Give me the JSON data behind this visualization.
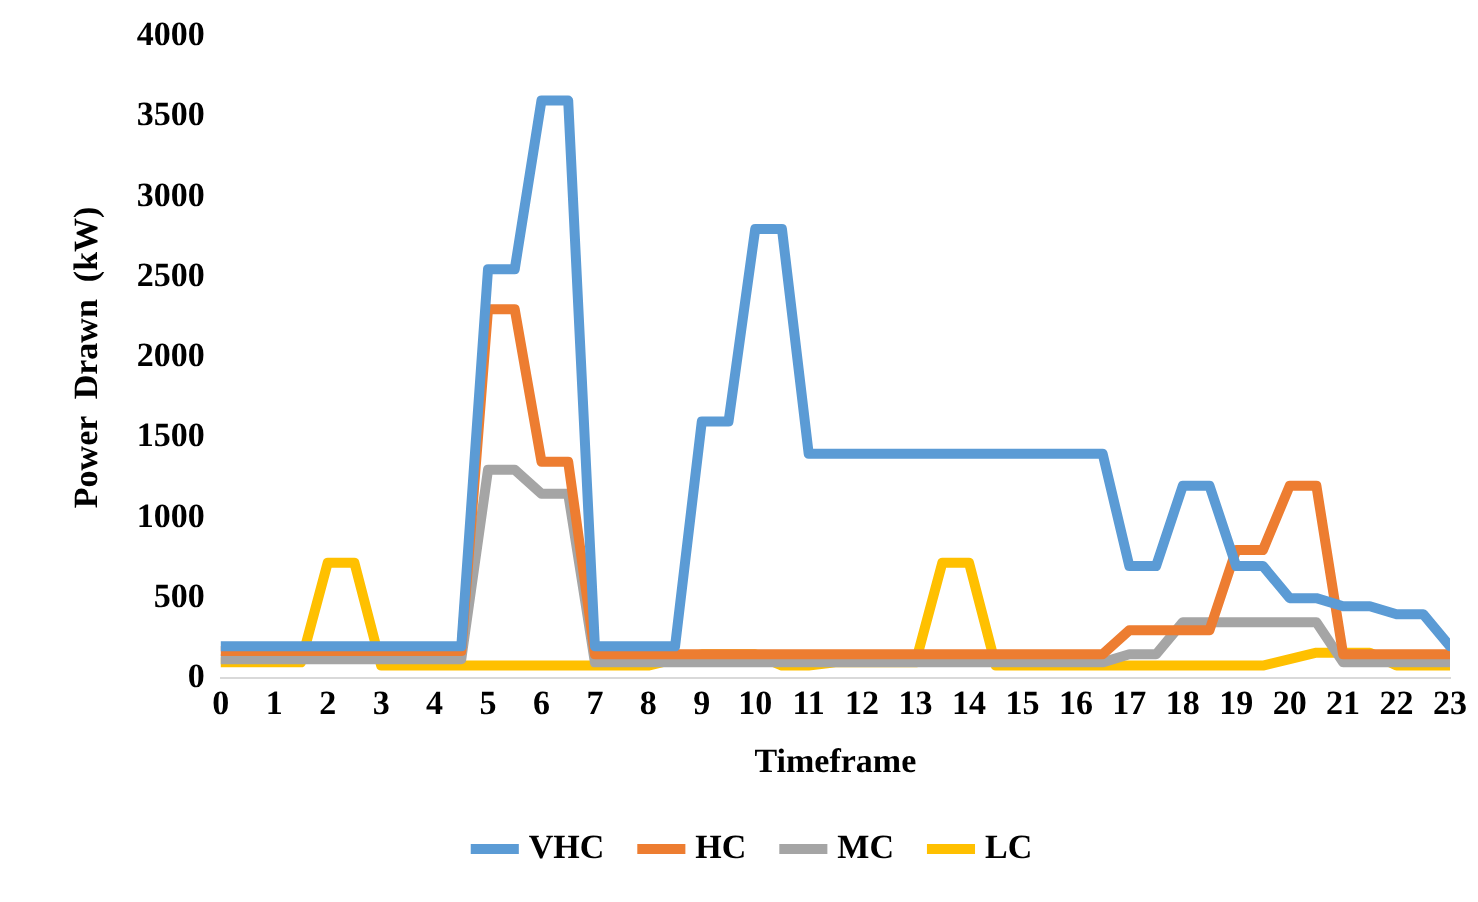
{
  "chart_data": {
    "type": "line",
    "xlabel": "Timeframe",
    "ylabel": "Power  Drawn  (kW)",
    "x": [
      0,
      0.5,
      1,
      1.5,
      2,
      2.5,
      3,
      3.5,
      4,
      4.5,
      5,
      5.5,
      6,
      6.5,
      7,
      7.5,
      8,
      8.5,
      9,
      9.5,
      10,
      10.5,
      11,
      11.5,
      12,
      12.5,
      13,
      13.5,
      14,
      14.5,
      15,
      15.5,
      16,
      16.5,
      17,
      17.5,
      18,
      18.5,
      19,
      19.5,
      20,
      20.5,
      21,
      21.5,
      22,
      22.5,
      23
    ],
    "series": [
      {
        "name": "VHC",
        "color": "#5b9bd5",
        "values": [
          200,
          200,
          200,
          200,
          200,
          200,
          200,
          200,
          200,
          200,
          2550,
          2550,
          3600,
          3600,
          200,
          200,
          200,
          200,
          1600,
          1600,
          2800,
          2800,
          1400,
          1400,
          1400,
          1400,
          1400,
          1400,
          1400,
          1400,
          1400,
          1400,
          1400,
          1400,
          700,
          700,
          1200,
          1200,
          700,
          700,
          500,
          500,
          450,
          450,
          400,
          400,
          200
        ]
      },
      {
        "name": "HC",
        "color": "#ed7d31",
        "values": [
          170,
          170,
          170,
          170,
          170,
          170,
          170,
          170,
          170,
          170,
          2300,
          2300,
          1350,
          1350,
          150,
          150,
          150,
          150,
          150,
          150,
          150,
          150,
          150,
          150,
          150,
          150,
          150,
          150,
          150,
          150,
          150,
          150,
          150,
          150,
          300,
          300,
          300,
          300,
          800,
          800,
          1200,
          1200,
          150,
          150,
          150,
          150,
          150
        ]
      },
      {
        "name": "MC",
        "color": "#a5a5a5",
        "values": [
          120,
          120,
          120,
          120,
          120,
          120,
          120,
          120,
          120,
          120,
          1300,
          1300,
          1150,
          1150,
          100,
          100,
          100,
          100,
          100,
          100,
          100,
          100,
          100,
          100,
          100,
          100,
          100,
          100,
          100,
          100,
          100,
          100,
          100,
          100,
          150,
          150,
          350,
          350,
          350,
          350,
          350,
          350,
          100,
          100,
          100,
          100,
          100
        ]
      },
      {
        "name": "LC",
        "color": "#ffc000",
        "values": [
          100,
          100,
          100,
          100,
          720,
          720,
          80,
          80,
          80,
          80,
          80,
          80,
          80,
          80,
          80,
          80,
          80,
          120,
          150,
          150,
          150,
          80,
          80,
          100,
          100,
          100,
          100,
          720,
          720,
          80,
          80,
          80,
          80,
          80,
          80,
          80,
          80,
          80,
          80,
          80,
          120,
          160,
          160,
          160,
          80,
          80,
          80
        ]
      }
    ],
    "xlim": [
      0,
      23
    ],
    "xticks": [
      0,
      1,
      2,
      3,
      4,
      5,
      6,
      7,
      8,
      9,
      10,
      11,
      12,
      13,
      14,
      15,
      16,
      17,
      18,
      19,
      20,
      21,
      22,
      23
    ],
    "ylim": [
      0,
      4000
    ],
    "yticks": [
      0,
      500,
      1000,
      1500,
      2000,
      2500,
      3000,
      3500,
      4000
    ],
    "grid": false,
    "legend": "bottom",
    "marker": "none",
    "line_style": "solid"
  }
}
